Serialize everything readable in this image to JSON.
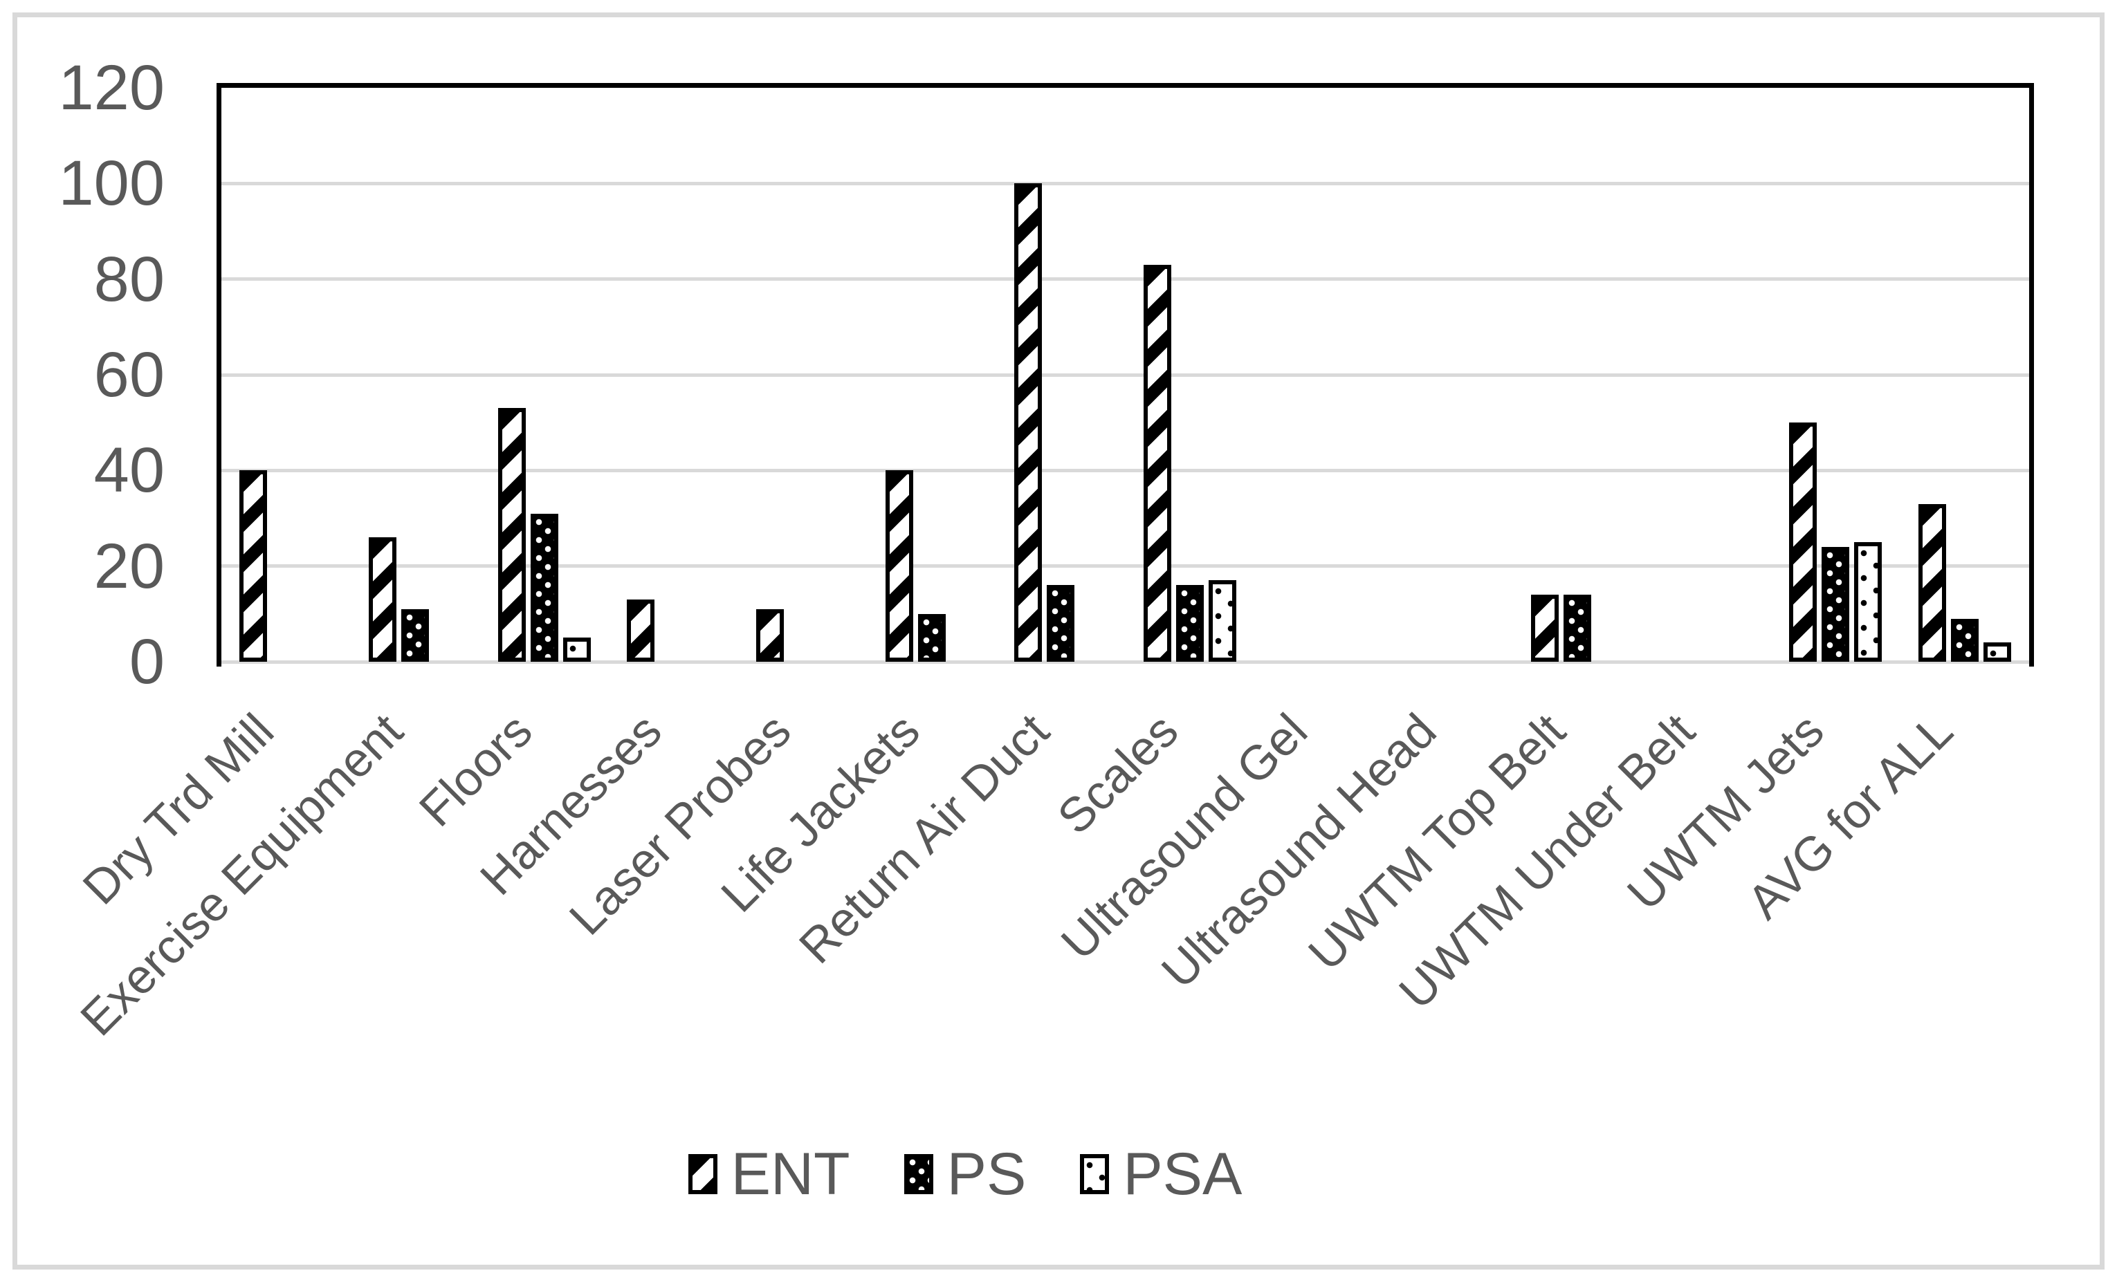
{
  "chart_data": {
    "type": "bar",
    "title": "",
    "xlabel": "",
    "ylabel": "",
    "ylim": [
      0,
      120
    ],
    "yticks": [
      0,
      20,
      40,
      60,
      80,
      100,
      120
    ],
    "grid": "horizontal-light-gray",
    "legend_position": "bottom-center",
    "categories": [
      "Dry Trd Mill",
      "Exercise Equipment",
      "Floors",
      "Harnesses",
      "Laser Probes",
      "Life Jackets",
      "Return Air Duct",
      "Scales",
      "Ultrasound Gel",
      "Ultrasound Head",
      "UWTM Top Belt",
      "UWTM Under Belt",
      "UWTM Jets",
      "AVG for ALL"
    ],
    "series": [
      {
        "name": "ENT",
        "pattern": "stripes",
        "pattern_description": "wide upward diagonal black/white stripes",
        "values": [
          40,
          26,
          53,
          13,
          11,
          40,
          100,
          83,
          0,
          0,
          14,
          0,
          50,
          33
        ]
      },
      {
        "name": "PS",
        "pattern": "dots-dark",
        "pattern_description": "black fill with sparse white dots",
        "values": [
          0,
          11,
          31,
          0,
          0,
          10,
          16,
          16,
          0,
          0,
          14,
          0,
          24,
          9
        ]
      },
      {
        "name": "PSA",
        "pattern": "dots-light",
        "pattern_description": "white fill with sparse black dots",
        "values": [
          0,
          0,
          5,
          0,
          0,
          0,
          0,
          17,
          0,
          0,
          0,
          0,
          25,
          4
        ]
      }
    ]
  },
  "colors": {
    "background": "#ffffff",
    "text": "#595959",
    "gridline": "#d9d9d9",
    "outer_border": "#d9d9d9",
    "plot_frame": "#000000",
    "bar_black": "#000000",
    "bar_white": "#ffffff"
  }
}
